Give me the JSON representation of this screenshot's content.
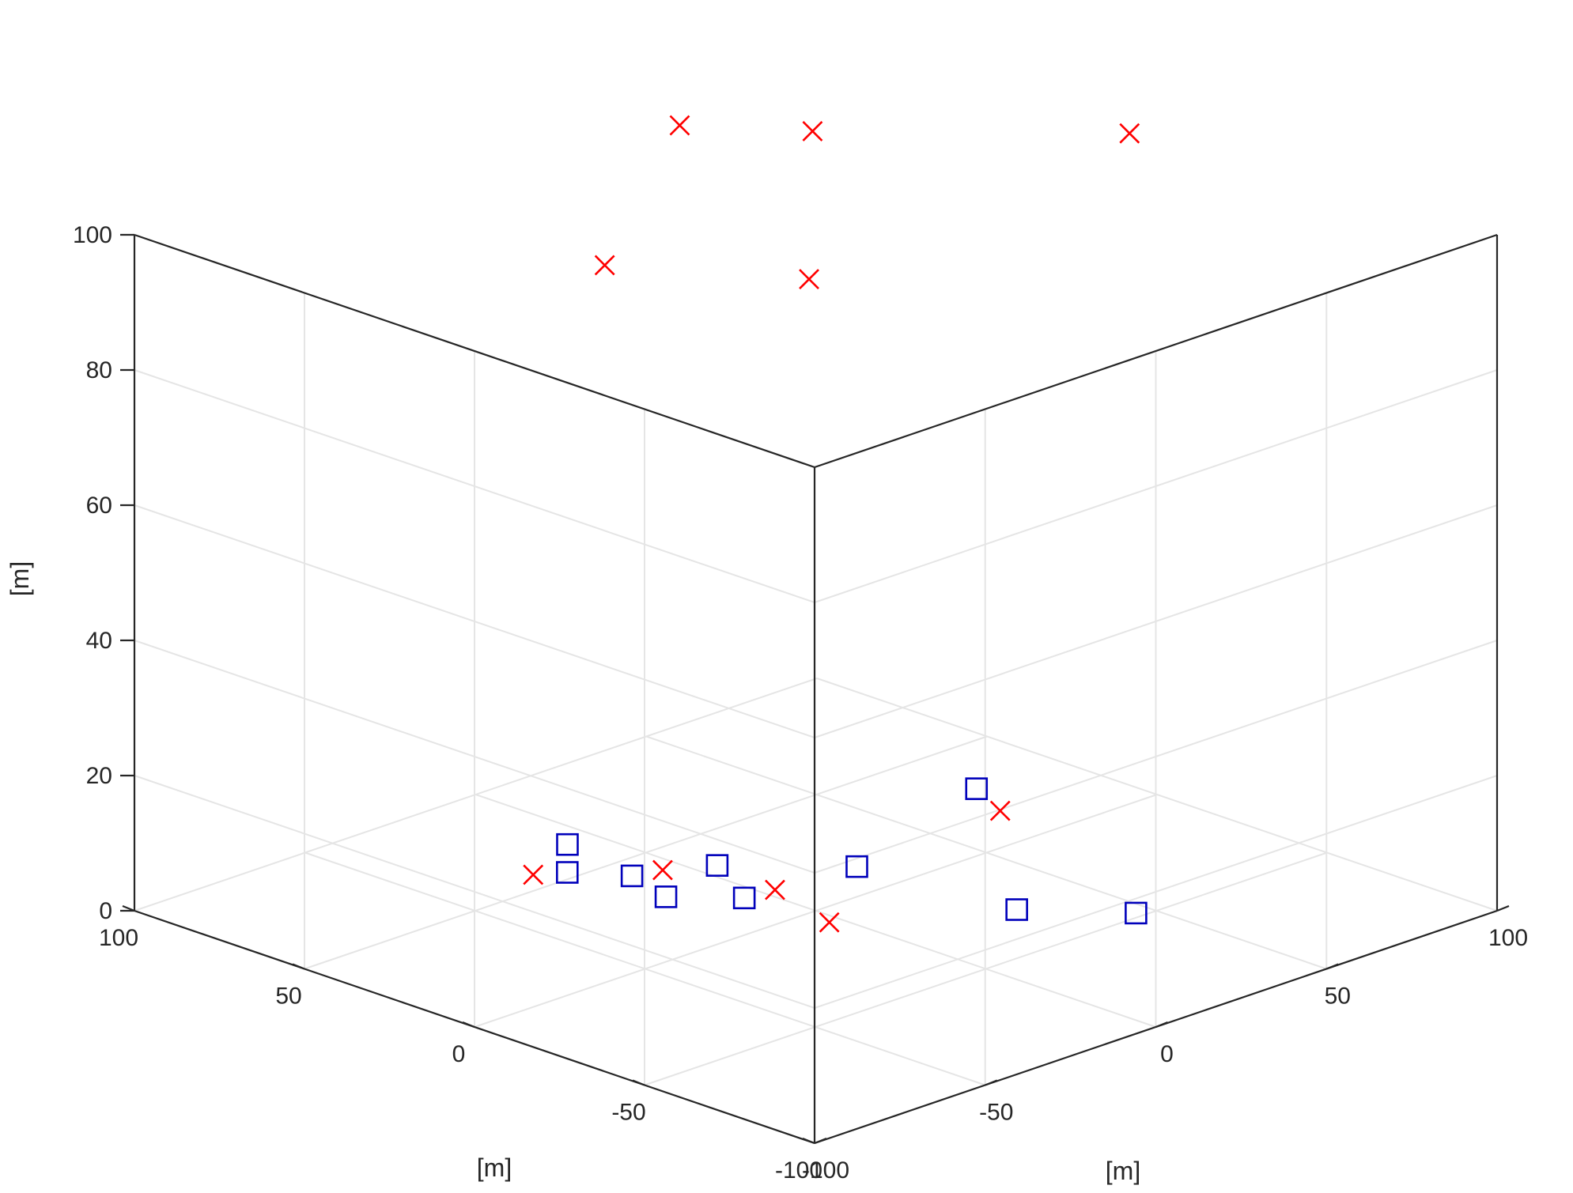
{
  "chart_data": {
    "type": "scatter3d",
    "title": "",
    "xlabel": "[m]",
    "ylabel": "[m]",
    "zlabel": "[m]",
    "xlim": [
      -100,
      100
    ],
    "ylim": [
      -100,
      100
    ],
    "zlim": [
      0,
      100
    ],
    "grid": true,
    "x_ticks": [
      "-100",
      "-50",
      "0",
      "50",
      "100"
    ],
    "y_ticks": [
      "-100",
      "-50",
      "0",
      "50",
      "100"
    ],
    "z_ticks": [
      "0",
      "20",
      "40",
      "60",
      "80",
      "100"
    ],
    "colors": {
      "crosses": "#ff0000",
      "squares": "#0000bb",
      "axis": "#262626",
      "grid": "#e5e5e5"
    },
    "series": [
      {
        "name": "crosses",
        "marker": "x",
        "points": [
          {
            "x": -2,
            "y": 38,
            "z": 110
          },
          {
            "x": 15,
            "y": 16,
            "z": 110
          },
          {
            "x": 78,
            "y": -14,
            "z": 104
          },
          {
            "x": -15,
            "y": 47,
            "z": 90
          },
          {
            "x": 9,
            "y": 11,
            "z": 90
          },
          {
            "x": 70,
            "y": 16,
            "z": 0
          },
          {
            "x": -26,
            "y": 57,
            "z": 0
          },
          {
            "x": -5,
            "y": 40,
            "z": 0
          },
          {
            "x": 3,
            "y": 15,
            "z": 0
          },
          {
            "x": -3,
            "y": -7,
            "z": 0
          }
        ]
      },
      {
        "name": "squares",
        "marker": "s",
        "points": [
          {
            "x": 76,
            "y": 29,
            "z": 0
          },
          {
            "x": -20,
            "y": 53,
            "z": 0
          },
          {
            "x": -8,
            "y": 65,
            "z": 0
          },
          {
            "x": 25,
            "y": 13,
            "z": 0
          },
          {
            "x": 5,
            "y": 34,
            "z": 0
          },
          {
            "x": 30,
            "y": -29,
            "z": 0
          },
          {
            "x": -12,
            "y": 42,
            "z": 0
          },
          {
            "x": -16,
            "y": 28,
            "z": 0
          },
          {
            "x": -5,
            "y": 16,
            "z": 0
          },
          {
            "x": 46,
            "y": -48,
            "z": 0
          }
        ]
      }
    ]
  }
}
